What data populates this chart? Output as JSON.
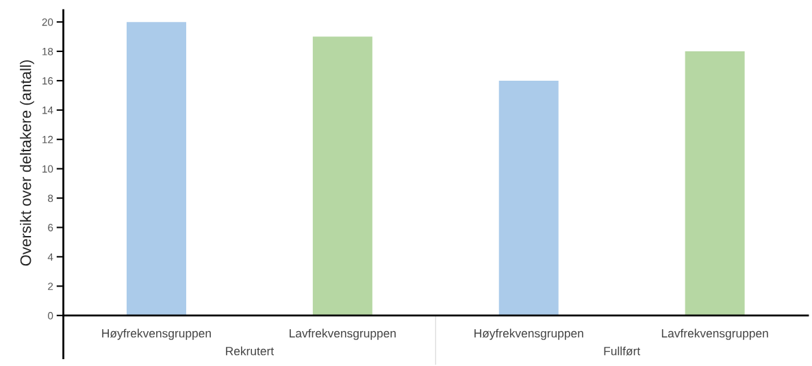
{
  "chart_data": {
    "type": "bar",
    "ylabel": "Oversikt over deltakere (antall)",
    "categories": [
      "Høyfrekvensgruppen",
      "Lavfrekvensgruppen",
      "Høyfrekvensgruppen",
      "Lavfrekvensgruppen"
    ],
    "values": [
      20,
      19,
      16,
      18
    ],
    "colors": [
      "#abcbea",
      "#b6d7a3",
      "#abcbea",
      "#b6d7a3"
    ],
    "ylim": [
      0,
      20.8
    ],
    "yticks": [
      0,
      2,
      4,
      6,
      8,
      10,
      12,
      14,
      16,
      18,
      20
    ],
    "grid": false,
    "legend": false,
    "annotations": [
      "Rekrutert",
      "Fullført"
    ]
  }
}
